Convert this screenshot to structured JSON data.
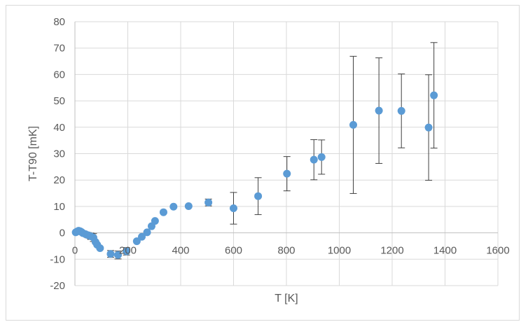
{
  "chart_data": {
    "type": "scatter",
    "title": "",
    "xlabel": "T [K]",
    "ylabel": "T-T90 [mK]",
    "xlim": [
      0,
      1600
    ],
    "ylim": [
      -20,
      80
    ],
    "x_ticks": [
      0,
      200,
      400,
      600,
      800,
      1000,
      1200,
      1400,
      1600
    ],
    "y_ticks": [
      -20,
      -10,
      0,
      10,
      20,
      30,
      40,
      50,
      60,
      70,
      80
    ],
    "x_tick_labels": [
      "0",
      "200",
      "400",
      "600",
      "800",
      "1000",
      "1200",
      "1400",
      "1600"
    ],
    "y_tick_labels": [
      "-20",
      "-10",
      "0",
      "10",
      "20",
      "30",
      "40",
      "50",
      "60",
      "70",
      "80"
    ],
    "grid": true,
    "marker_color": "#5b9bd5",
    "errorbar_color": "#404040",
    "gridline_color": "#d9d9d9",
    "series": [
      {
        "points": [
          {
            "x": 3,
            "y": 0.2,
            "err": 0
          },
          {
            "x": 8,
            "y": 0.5,
            "err": 0
          },
          {
            "x": 14,
            "y": 0.8,
            "err": 0
          },
          {
            "x": 20,
            "y": 0.6,
            "err": 0
          },
          {
            "x": 25,
            "y": 0.3,
            "err": 0
          },
          {
            "x": 30,
            "y": -0.1,
            "err": 0
          },
          {
            "x": 40,
            "y": -0.5,
            "err": 0.5
          },
          {
            "x": 50,
            "y": -0.9,
            "err": 1
          },
          {
            "x": 60,
            "y": -1.3,
            "err": 1.2
          },
          {
            "x": 70,
            "y": -1.8,
            "err": 1.5
          },
          {
            "x": 78,
            "y": -3.5,
            "err": 0.5
          },
          {
            "x": 84,
            "y": -4.5,
            "err": 0.5
          },
          {
            "x": 95,
            "y": -5.8,
            "err": 0.5
          },
          {
            "x": 135,
            "y": -8.0,
            "err": 1.3
          },
          {
            "x": 163,
            "y": -8.4,
            "err": 1.5
          },
          {
            "x": 195,
            "y": -7.0,
            "err": 1.4
          },
          {
            "x": 234,
            "y": -3.2,
            "err": 0
          },
          {
            "x": 253,
            "y": -1.5,
            "err": 0
          },
          {
            "x": 273,
            "y": 0.2,
            "err": 0
          },
          {
            "x": 290,
            "y": 2.5,
            "err": 0
          },
          {
            "x": 303,
            "y": 4.5,
            "err": 0
          },
          {
            "x": 335,
            "y": 7.8,
            "err": 0
          },
          {
            "x": 373,
            "y": 9.9,
            "err": 0
          },
          {
            "x": 430,
            "y": 10.1,
            "err": 0
          },
          {
            "x": 505,
            "y": 11.5,
            "err": 1.3
          },
          {
            "x": 600,
            "y": 9.3,
            "err": 6
          },
          {
            "x": 693,
            "y": 13.9,
            "err": 7
          },
          {
            "x": 802,
            "y": 22.4,
            "err": 6.5
          },
          {
            "x": 904,
            "y": 27.7,
            "err": 7.6
          },
          {
            "x": 933,
            "y": 28.7,
            "err": 6.5
          },
          {
            "x": 1053,
            "y": 40.9,
            "err": 26
          },
          {
            "x": 1150,
            "y": 46.3,
            "err": 20
          },
          {
            "x": 1235,
            "y": 46.2,
            "err": 14
          },
          {
            "x": 1338,
            "y": 39.9,
            "err": 20
          },
          {
            "x": 1358,
            "y": 52.1,
            "err": 20
          }
        ]
      }
    ]
  }
}
